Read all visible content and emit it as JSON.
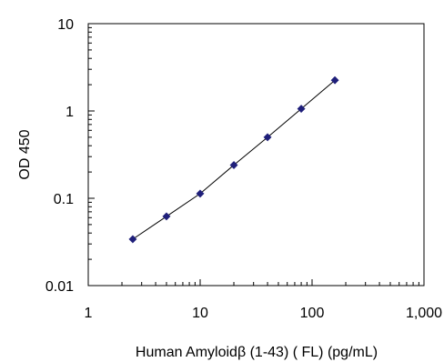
{
  "chart_data": {
    "type": "scatter",
    "title": "",
    "xlabel": "Human Amyloidβ (1-43) ( FL) (pg/mL)",
    "ylabel": "OD 450",
    "x_scale": "log",
    "y_scale": "log",
    "xlim": [
      1,
      1000
    ],
    "ylim": [
      0.01,
      10
    ],
    "x_tick_labels": [
      "1",
      "10",
      "100",
      "1,000"
    ],
    "y_tick_labels": [
      "0.01",
      "0.1",
      "1",
      "10"
    ],
    "grid": false,
    "legend": "none",
    "marker": "diamond",
    "colors": {
      "marker": "#1f1f7a",
      "line": "#000000",
      "axis": "#000000"
    },
    "series": [
      {
        "x": [
          2.5,
          5,
          10,
          20,
          40,
          80,
          160
        ],
        "y": [
          0.034,
          0.062,
          0.113,
          0.24,
          0.5,
          1.06,
          2.25
        ],
        "fit_line": true
      }
    ]
  }
}
